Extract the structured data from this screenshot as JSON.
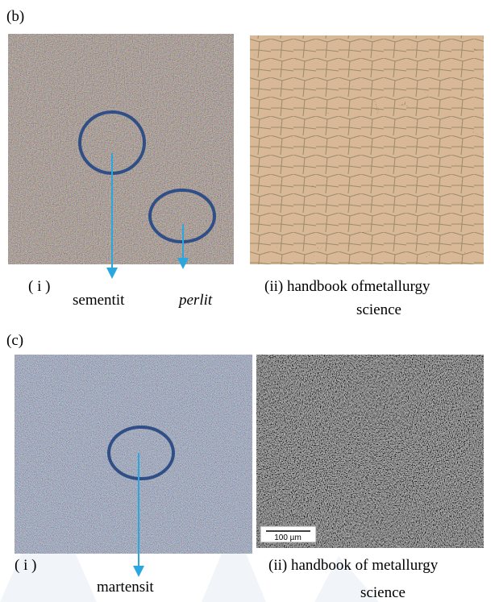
{
  "panel_b": {
    "label": "(b)",
    "left_caption": "( i )",
    "annotation_1": "sementit",
    "annotation_2": "perlit",
    "right_caption": "(ii) handbook ofmetallurgy",
    "right_caption_2": "science"
  },
  "panel_c": {
    "label": "(c)",
    "left_caption": "( i )",
    "annotation_1": "martensit",
    "right_caption": "(ii) handbook of metallurgy",
    "right_caption_2": "science",
    "scale_bar": "100 µm"
  }
}
